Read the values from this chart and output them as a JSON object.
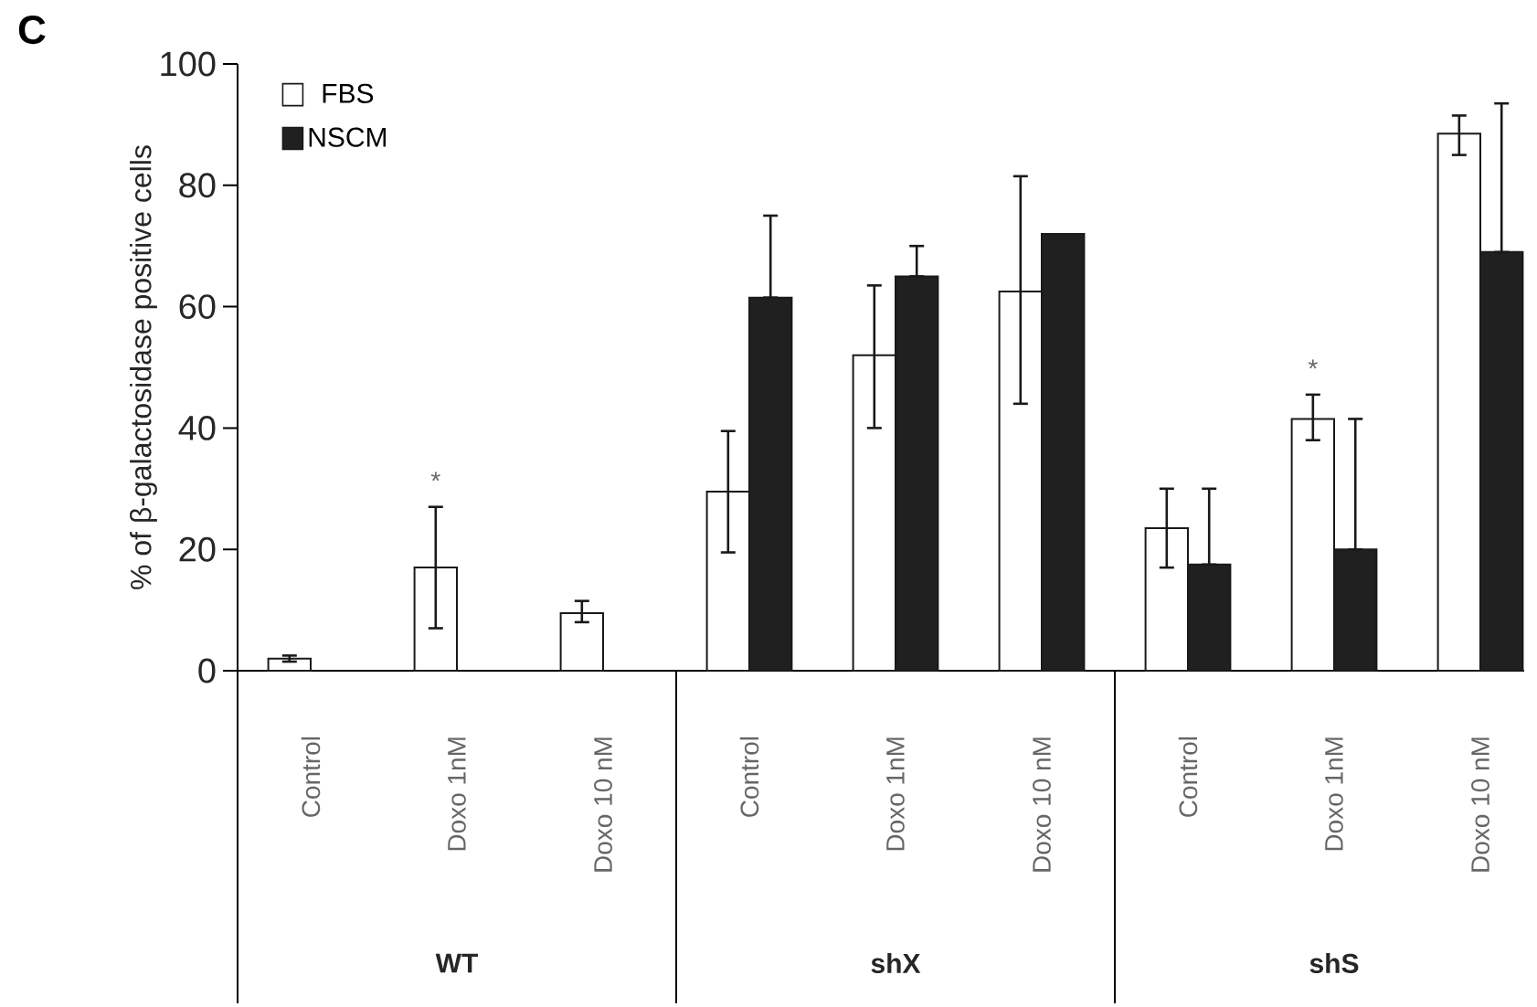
{
  "chart_data": {
    "type": "bar",
    "title": "C",
    "ylabel": "% of β-galactosidase  positive cells",
    "categories": [
      "Control",
      "Doxo 1nM",
      "Doxo 10 nM",
      "Control",
      "Doxo 1nM",
      "Doxo 10 nM",
      "Control",
      "Doxo 1nM",
      "Doxo 10 nM"
    ],
    "series": [
      {
        "name": "FBS",
        "color": "#ffffff",
        "values": [
          2,
          17,
          9.5,
          29.5,
          52,
          62.5,
          23.5,
          41.5,
          88.5
        ],
        "errors": [
          [
            1.5,
            2.5
          ],
          [
            7,
            27
          ],
          [
            8,
            11.5
          ],
          [
            19.5,
            39.5
          ],
          [
            40,
            63.5
          ],
          [
            44,
            81.5
          ],
          [
            17,
            30
          ],
          [
            38,
            45.5
          ],
          [
            85,
            91.5
          ]
        ]
      },
      {
        "name": "NSCM",
        "color": "#202020",
        "values": [
          null,
          null,
          null,
          61.5,
          65,
          72,
          17.5,
          20,
          69
        ],
        "errors": [
          null,
          null,
          null,
          [
            61.5,
            75
          ],
          [
            65,
            70
          ],
          null,
          [
            17.5,
            30
          ],
          [
            20,
            41.5
          ],
          [
            69,
            93.5
          ]
        ]
      }
    ],
    "ylim": [
      0,
      100
    ],
    "yticks": [
      0,
      20,
      40,
      60,
      80,
      100
    ],
    "legend": "top left",
    "annotations": [
      "*",
      "*",
      "WT",
      "shX",
      "shS"
    ]
  }
}
